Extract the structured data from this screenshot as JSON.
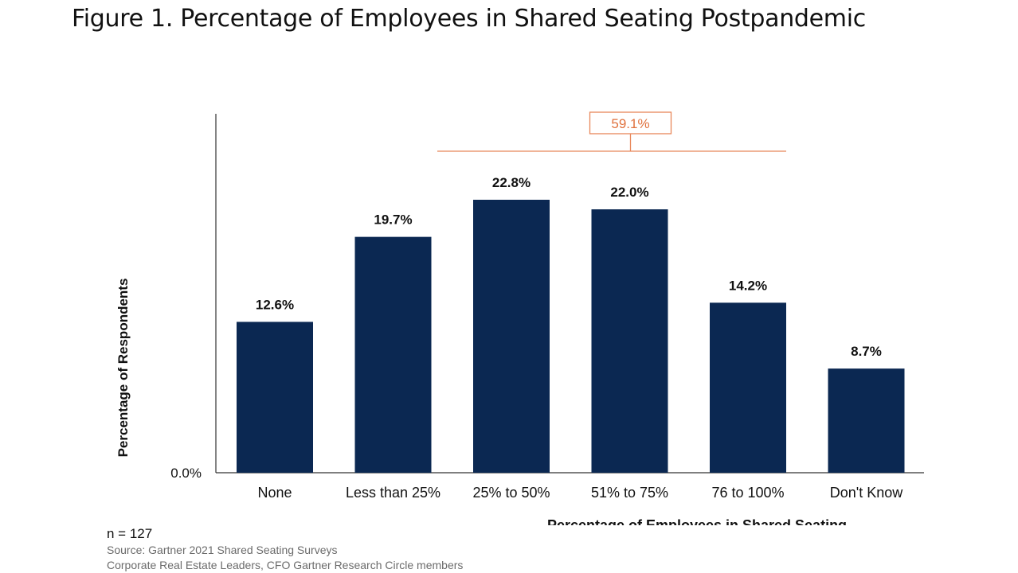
{
  "figure_title": "Figure 1. Percentage of Employees in Shared Seating Postpandemic",
  "colors": {
    "bar": "#0b2852",
    "axis": "#333333",
    "bracket": "#e8875a",
    "bracket_text": "#e0713d",
    "text": "#111111",
    "note_text": "#6b6b6b"
  },
  "chart_data": {
    "type": "bar",
    "title": "Figure 1. Percentage of Employees in Shared Seating Postpandemic",
    "categories": [
      "None",
      "Less than 25%",
      "25% to 50%",
      "51% to 75%",
      "76 to 100%",
      "Don't Know"
    ],
    "values": [
      12.6,
      19.7,
      22.8,
      22.0,
      14.2,
      8.7
    ],
    "data_labels": [
      "12.6%",
      "19.7%",
      "22.8%",
      "22.0%",
      "14.2%",
      "8.7%"
    ],
    "xlabel": "Percentage of Employees in Shared Seating",
    "ylabel": "Percentage of Respondents",
    "y_tick_label": "0.0%",
    "ylim": [
      0,
      30
    ],
    "grid": false,
    "annotation": {
      "label": "59.1%",
      "spans_categories": [
        "25% to 50%",
        "51% to 75%",
        "76 to 100%"
      ]
    }
  },
  "notes": {
    "n": "n = 127",
    "source": "Source: Gartner 2021 Shared Seating Surveys",
    "respondents": "Corporate Real Estate Leaders, CFO Gartner Research Circle members"
  }
}
